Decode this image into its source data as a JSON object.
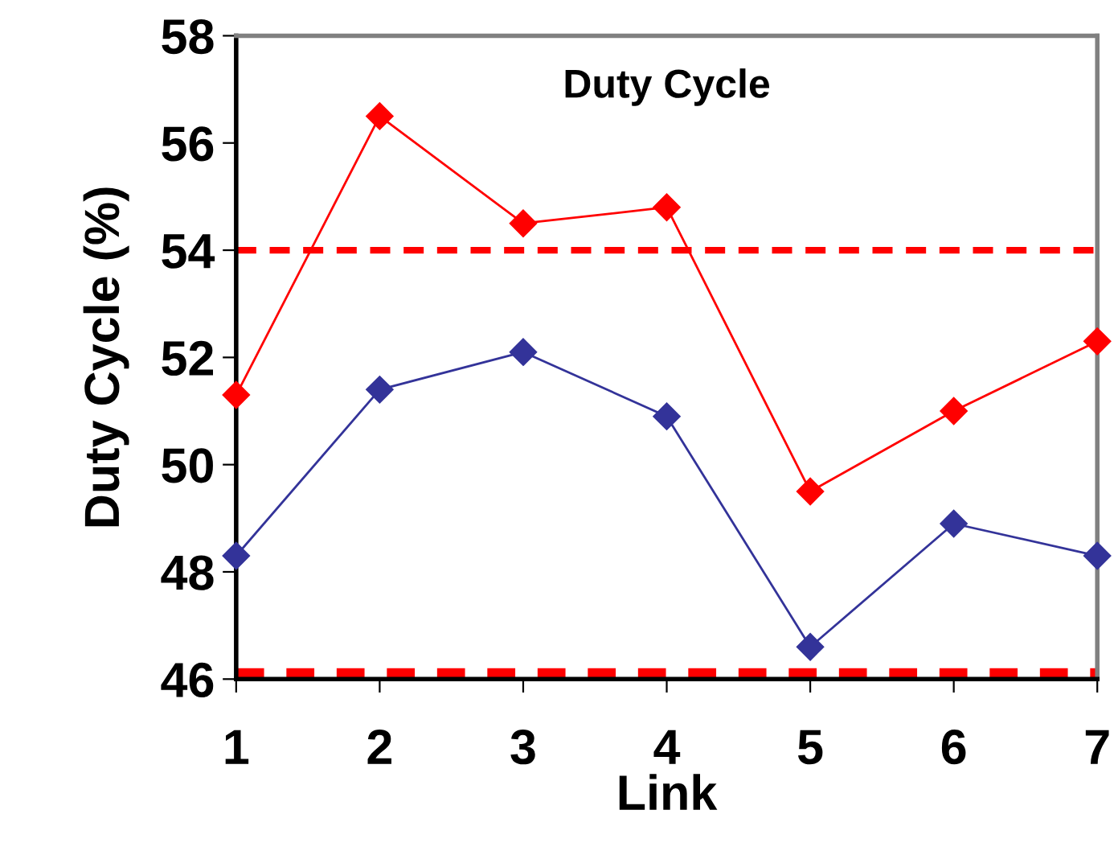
{
  "chart_data": {
    "type": "line",
    "title": "Duty Cycle",
    "xlabel": "Link",
    "ylabel": "Duty Cycle (%)",
    "x": [
      1,
      2,
      3,
      4,
      5,
      6,
      7
    ],
    "series": [
      {
        "color": "#ff0000",
        "values": [
          51.3,
          56.5,
          54.5,
          54.8,
          49.5,
          51.0,
          52.3
        ]
      },
      {
        "color": "#333399",
        "values": [
          48.3,
          51.4,
          52.1,
          50.9,
          46.6,
          48.9,
          48.3
        ]
      }
    ],
    "xlim": [
      1,
      7
    ],
    "xticks": [
      1,
      2,
      3,
      4,
      5,
      6,
      7
    ],
    "ylim": [
      46,
      58
    ],
    "yticks": [
      46,
      48,
      50,
      52,
      54,
      56,
      58
    ],
    "ref_lines": [
      {
        "axis": "y",
        "value": 54,
        "color": "#ff0000",
        "line_style": "dashed"
      },
      {
        "axis": "y",
        "value": 46.1,
        "color": "#ff0000",
        "line_style": "dashed"
      }
    ],
    "marker": "diamond",
    "line_style": "solid",
    "grid": false,
    "legend": false
  }
}
